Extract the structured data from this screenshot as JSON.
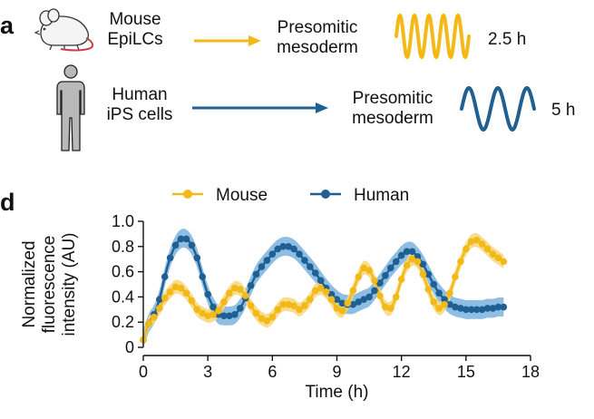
{
  "panel_a": {
    "letter": "a",
    "rows": [
      {
        "source_line1": "Mouse",
        "source_line2": "EpiLCs",
        "target_line1": "Presomitic",
        "target_line2": "mesoderm",
        "period": "2.5 h",
        "color": "#f2b918",
        "icon": "mouse-icon"
      },
      {
        "source_line1": "Human",
        "source_line2": "iPS cells",
        "target_line1": "Presomitic",
        "target_line2": "mesoderm",
        "period": "5 h",
        "color": "#1f5f91",
        "icon": "human-figure-icon"
      }
    ]
  },
  "panel_d": {
    "letter": "d"
  },
  "chart_data": {
    "type": "line",
    "xlabel": "Time (h)",
    "ylabel": "Normalized fluorescence intensity (AU)",
    "ylabel_lines": [
      "Normalized",
      "fluorescence",
      "intensity (AU)"
    ],
    "xlim": [
      0,
      18
    ],
    "ylim": [
      0,
      1.0
    ],
    "xticks": [
      0,
      3,
      6,
      9,
      12,
      15,
      18
    ],
    "xtick_labels": [
      "0",
      "3",
      "6",
      "9",
      "12",
      "15",
      "18"
    ],
    "yticks": [
      0,
      0.2,
      0.4,
      0.6,
      0.8,
      1.0
    ],
    "ytick_labels": [
      "0",
      "0.2",
      "0.4",
      "0.6",
      "0.8",
      "1.0"
    ],
    "legend_position": "top",
    "x": [
      0,
      0.25,
      0.5,
      0.75,
      1,
      1.25,
      1.5,
      1.75,
      2,
      2.25,
      2.5,
      2.75,
      3,
      3.25,
      3.5,
      3.75,
      4,
      4.25,
      4.5,
      4.75,
      5,
      5.25,
      5.5,
      5.75,
      6,
      6.25,
      6.5,
      6.75,
      7,
      7.25,
      7.5,
      7.75,
      8,
      8.25,
      8.5,
      8.75,
      9,
      9.25,
      9.5,
      9.75,
      10,
      10.25,
      10.5,
      10.75,
      11,
      11.25,
      11.5,
      11.75,
      12,
      12.25,
      12.5,
      12.75,
      13,
      13.25,
      13.5,
      13.75,
      14,
      14.25,
      14.5,
      14.75,
      15,
      15.25,
      15.5,
      15.75,
      16,
      16.25,
      16.5,
      16.75
    ],
    "series": [
      {
        "name": "Mouse",
        "color": "#f2b918",
        "band_color": "#f7d77a",
        "values": [
          0.06,
          0.19,
          0.24,
          0.31,
          0.39,
          0.44,
          0.48,
          0.47,
          0.43,
          0.37,
          0.3,
          0.27,
          0.25,
          0.26,
          0.29,
          0.36,
          0.43,
          0.47,
          0.46,
          0.41,
          0.33,
          0.27,
          0.23,
          0.21,
          0.24,
          0.3,
          0.34,
          0.34,
          0.33,
          0.3,
          0.33,
          0.38,
          0.45,
          0.47,
          0.44,
          0.38,
          0.31,
          0.29,
          0.35,
          0.45,
          0.56,
          0.63,
          0.61,
          0.53,
          0.41,
          0.32,
          0.31,
          0.4,
          0.54,
          0.65,
          0.7,
          0.68,
          0.58,
          0.46,
          0.36,
          0.31,
          0.34,
          0.43,
          0.56,
          0.68,
          0.78,
          0.84,
          0.85,
          0.82,
          0.78,
          0.74,
          0.71,
          0.68
        ]
      },
      {
        "name": "Human",
        "color": "#1f5f91",
        "band_color": "#7ab3de",
        "values": [
          0.06,
          0.19,
          0.26,
          0.38,
          0.56,
          0.71,
          0.81,
          0.86,
          0.86,
          0.81,
          0.71,
          0.56,
          0.42,
          0.32,
          0.26,
          0.25,
          0.25,
          0.26,
          0.31,
          0.39,
          0.49,
          0.58,
          0.64,
          0.69,
          0.74,
          0.78,
          0.8,
          0.8,
          0.78,
          0.74,
          0.69,
          0.64,
          0.59,
          0.53,
          0.47,
          0.42,
          0.38,
          0.35,
          0.34,
          0.34,
          0.36,
          0.38,
          0.4,
          0.45,
          0.51,
          0.57,
          0.63,
          0.68,
          0.73,
          0.76,
          0.76,
          0.72,
          0.66,
          0.58,
          0.5,
          0.43,
          0.38,
          0.34,
          0.32,
          0.31,
          0.3,
          0.3,
          0.3,
          0.3,
          0.31,
          0.31,
          0.32,
          0.32
        ]
      }
    ]
  }
}
